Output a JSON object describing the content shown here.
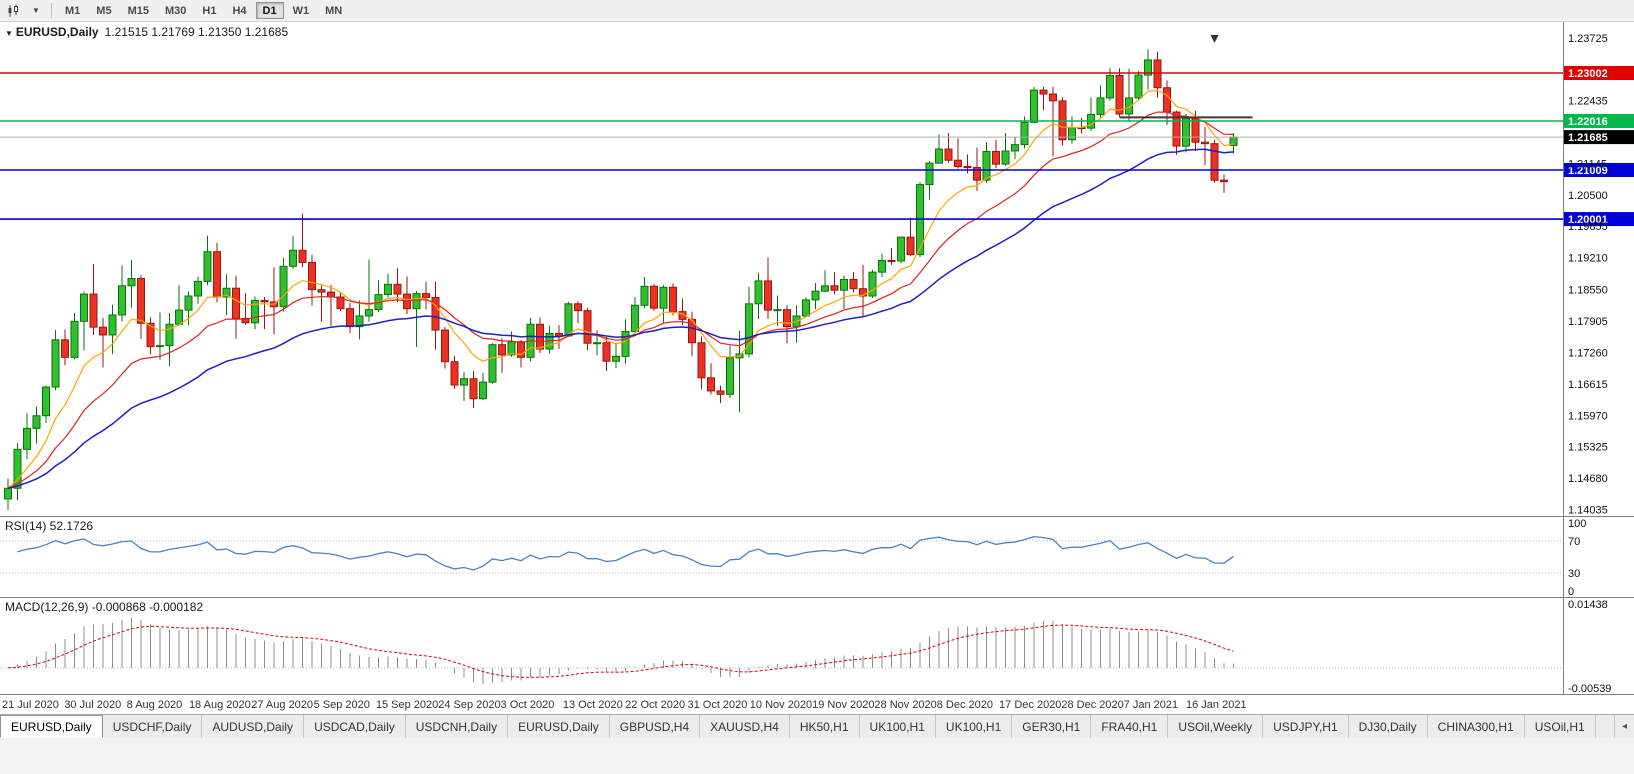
{
  "toolbar": {
    "chart_type_icon": "candlestick-chart-icon",
    "dropdown_icon": "▼",
    "timeframes": [
      "M1",
      "M5",
      "M15",
      "M30",
      "H1",
      "H4",
      "D1",
      "W1",
      "MN"
    ],
    "active_timeframe": "D1"
  },
  "chart": {
    "title_symbol": "EURUSD,Daily",
    "title_ohlc": "1.21515 1.21769 1.21350 1.21685",
    "rsi_label": "RSI(14) 52.1726",
    "macd_label": "MACD(12,26,9) -0.000868 -0.000182"
  },
  "chart_data": {
    "type": "candlestick",
    "symbol": "EURUSD",
    "timeframe": "Daily",
    "background": "#FFFFFF",
    "colors": {
      "up": "#2FBF2F",
      "up_border": "#0B720B",
      "down": "#EA3323",
      "down_border": "#9E1410",
      "axis_text": "#111111",
      "time_text": "#333333",
      "separator": "#808080",
      "current_price_line": "#ADADAD"
    },
    "price_axis": {
      "min": 1.139,
      "max": 1.2405,
      "ticks": [
        "1.23725",
        "1.22435",
        "1.21145",
        "1.20500",
        "1.19855",
        "1.19210",
        "1.18550",
        "1.17905",
        "1.17260",
        "1.16615",
        "1.15970",
        "1.15325",
        "1.14680",
        "1.14035"
      ]
    },
    "time_axis": [
      "21 Jul 2020",
      "30 Jul 2020",
      "8 Aug 2020",
      "18 Aug 2020",
      "27 Aug 2020",
      "5 Sep 2020",
      "15 Sep 2020",
      "24 Sep 2020",
      "3 Oct 2020",
      "13 Oct 2020",
      "22 Oct 2020",
      "31 Oct 2020",
      "10 Nov 2020",
      "19 Nov 2020",
      "28 Nov 2020",
      "8 Dec 2020",
      "17 Dec 2020",
      "28 Dec 2020",
      "7 Jan 2021",
      "16 Jan 2021"
    ],
    "hlines": [
      {
        "price": 1.23002,
        "label": "1.23002",
        "color": "#E00000"
      },
      {
        "price": 1.22016,
        "label": "1.22016",
        "color": "#00B84C"
      },
      {
        "price": 1.21009,
        "label": "1.21009",
        "color": "#0000D8"
      },
      {
        "price": 1.20001,
        "label": "1.20001",
        "color": "#0000D8"
      }
    ],
    "current_price": {
      "value": 1.21685,
      "label": "1.21685",
      "badge_color": "#000000"
    },
    "trend_segment": {
      "price": 1.2209,
      "from_index": 117,
      "to_index": 131,
      "color": "#3A3A3A"
    },
    "arrow_object": {
      "index": 127,
      "price": 1.237,
      "color": "#303030",
      "shape": "arrow-down"
    },
    "candles": [
      [
        1.1425,
        1.1467,
        1.1402,
        1.1447
      ],
      [
        1.1447,
        1.154,
        1.1422,
        1.1527
      ],
      [
        1.1527,
        1.1601,
        1.1507,
        1.157
      ],
      [
        1.157,
        1.1615,
        1.1539,
        1.1596
      ],
      [
        1.1596,
        1.1658,
        1.1581,
        1.1655
      ],
      [
        1.1655,
        1.1772,
        1.1648,
        1.1752
      ],
      [
        1.1752,
        1.1773,
        1.17,
        1.1716
      ],
      [
        1.1716,
        1.1807,
        1.1712,
        1.179
      ],
      [
        1.179,
        1.1851,
        1.173,
        1.1846
      ],
      [
        1.1846,
        1.1908,
        1.1762,
        1.1778
      ],
      [
        1.1778,
        1.1797,
        1.1695,
        1.1762
      ],
      [
        1.1762,
        1.1824,
        1.1723,
        1.1803
      ],
      [
        1.1803,
        1.1905,
        1.179,
        1.1863
      ],
      [
        1.1863,
        1.1916,
        1.1818,
        1.1878
      ],
      [
        1.1878,
        1.1885,
        1.1754,
        1.1786
      ],
      [
        1.1786,
        1.1798,
        1.1722,
        1.1738
      ],
      [
        1.1738,
        1.1808,
        1.1711,
        1.174
      ],
      [
        1.174,
        1.1807,
        1.1698,
        1.1784
      ],
      [
        1.1784,
        1.1864,
        1.1781,
        1.1813
      ],
      [
        1.1813,
        1.1851,
        1.1782,
        1.1842
      ],
      [
        1.1842,
        1.1882,
        1.1826,
        1.1872
      ],
      [
        1.1872,
        1.1966,
        1.1864,
        1.1933
      ],
      [
        1.1933,
        1.1951,
        1.1829,
        1.184
      ],
      [
        1.184,
        1.1887,
        1.1803,
        1.1858
      ],
      [
        1.1858,
        1.1884,
        1.1754,
        1.1796
      ],
      [
        1.1796,
        1.1848,
        1.1783,
        1.1787
      ],
      [
        1.1787,
        1.1841,
        1.1774,
        1.1833
      ],
      [
        1.1833,
        1.184,
        1.1774,
        1.183
      ],
      [
        1.183,
        1.1901,
        1.1763,
        1.182
      ],
      [
        1.182,
        1.192,
        1.181,
        1.1903
      ],
      [
        1.1903,
        1.1965,
        1.1898,
        1.1936
      ],
      [
        1.1936,
        1.2011,
        1.1901,
        1.1911
      ],
      [
        1.1911,
        1.1927,
        1.1822,
        1.1855
      ],
      [
        1.1855,
        1.1864,
        1.1789,
        1.185
      ],
      [
        1.185,
        1.1865,
        1.1781,
        1.184
      ],
      [
        1.184,
        1.1849,
        1.1811,
        1.1816
      ],
      [
        1.1816,
        1.1828,
        1.1766,
        1.1779
      ],
      [
        1.1779,
        1.1833,
        1.1753,
        1.1801
      ],
      [
        1.1801,
        1.1917,
        1.1789,
        1.1814
      ],
      [
        1.1814,
        1.1874,
        1.1809,
        1.1845
      ],
      [
        1.1845,
        1.1888,
        1.1839,
        1.1866
      ],
      [
        1.1866,
        1.1899,
        1.1829,
        1.1846
      ],
      [
        1.1846,
        1.1882,
        1.1805,
        1.1816
      ],
      [
        1.1816,
        1.1852,
        1.1737,
        1.1847
      ],
      [
        1.1847,
        1.1871,
        1.1814,
        1.1839
      ],
      [
        1.1839,
        1.1872,
        1.1732,
        1.1772
      ],
      [
        1.1772,
        1.1778,
        1.1693,
        1.1707
      ],
      [
        1.1707,
        1.1719,
        1.1651,
        1.1659
      ],
      [
        1.1659,
        1.1686,
        1.1626,
        1.1672
      ],
      [
        1.1672,
        1.1688,
        1.1612,
        1.1631
      ],
      [
        1.1631,
        1.1684,
        1.1628,
        1.1665
      ],
      [
        1.1665,
        1.1745,
        1.1662,
        1.1742
      ],
      [
        1.1742,
        1.1755,
        1.1684,
        1.1721
      ],
      [
        1.1721,
        1.1769,
        1.1717,
        1.1748
      ],
      [
        1.1748,
        1.1751,
        1.1695,
        1.1716
      ],
      [
        1.1716,
        1.1797,
        1.1708,
        1.1784
      ],
      [
        1.1784,
        1.1798,
        1.1725,
        1.1733
      ],
      [
        1.1733,
        1.1781,
        1.1724,
        1.1765
      ],
      [
        1.1765,
        1.1782,
        1.1733,
        1.176
      ],
      [
        1.176,
        1.183,
        1.1758,
        1.1826
      ],
      [
        1.1826,
        1.1831,
        1.1786,
        1.1812
      ],
      [
        1.1812,
        1.1818,
        1.1731,
        1.1745
      ],
      [
        1.1745,
        1.1772,
        1.172,
        1.1746
      ],
      [
        1.1746,
        1.1758,
        1.1688,
        1.1708
      ],
      [
        1.1708,
        1.1746,
        1.1694,
        1.1718
      ],
      [
        1.1718,
        1.1794,
        1.1703,
        1.1769
      ],
      [
        1.1769,
        1.184,
        1.1761,
        1.1823
      ],
      [
        1.1823,
        1.1881,
        1.1817,
        1.1862
      ],
      [
        1.1862,
        1.1866,
        1.1811,
        1.1817
      ],
      [
        1.1817,
        1.1864,
        1.1786,
        1.186
      ],
      [
        1.186,
        1.1868,
        1.1802,
        1.181
      ],
      [
        1.181,
        1.1837,
        1.1782,
        1.1794
      ],
      [
        1.1794,
        1.181,
        1.1718,
        1.1746
      ],
      [
        1.1746,
        1.1759,
        1.165,
        1.1674
      ],
      [
        1.1674,
        1.1704,
        1.164,
        1.1647
      ],
      [
        1.1647,
        1.1658,
        1.1622,
        1.164
      ],
      [
        1.164,
        1.174,
        1.1633,
        1.1715
      ],
      [
        1.1715,
        1.177,
        1.1603,
        1.1723
      ],
      [
        1.1723,
        1.1861,
        1.1716,
        1.1826
      ],
      [
        1.1826,
        1.189,
        1.1795,
        1.1873
      ],
      [
        1.1873,
        1.1921,
        1.1795,
        1.1813
      ],
      [
        1.1813,
        1.1843,
        1.1781,
        1.1814
      ],
      [
        1.1814,
        1.1823,
        1.1745,
        1.1779
      ],
      [
        1.1779,
        1.1823,
        1.1746,
        1.1801
      ],
      [
        1.1801,
        1.1839,
        1.1799,
        1.1834
      ],
      [
        1.1834,
        1.1869,
        1.1815,
        1.1852
      ],
      [
        1.1852,
        1.1895,
        1.185,
        1.1863
      ],
      [
        1.1863,
        1.1891,
        1.1846,
        1.1854
      ],
      [
        1.1854,
        1.1884,
        1.1815,
        1.1876
      ],
      [
        1.1876,
        1.1891,
        1.1849,
        1.1857
      ],
      [
        1.1857,
        1.1906,
        1.18,
        1.1842
      ],
      [
        1.1842,
        1.1896,
        1.1838,
        1.1891
      ],
      [
        1.1891,
        1.1929,
        1.1881,
        1.1915
      ],
      [
        1.1915,
        1.1941,
        1.1906,
        1.1914
      ],
      [
        1.1914,
        1.1964,
        1.1909,
        1.1963
      ],
      [
        1.1963,
        1.2003,
        1.1924,
        1.1927
      ],
      [
        1.1927,
        1.2076,
        1.1922,
        1.2071
      ],
      [
        1.2071,
        1.2119,
        1.204,
        1.2115
      ],
      [
        1.2115,
        1.2174,
        1.2114,
        1.2144
      ],
      [
        1.2144,
        1.2177,
        1.2116,
        1.2121
      ],
      [
        1.2121,
        1.2166,
        1.2104,
        1.2108
      ],
      [
        1.2108,
        1.2133,
        1.2094,
        1.2106
      ],
      [
        1.2106,
        1.2147,
        1.2058,
        1.208
      ],
      [
        1.208,
        1.2158,
        1.2075,
        1.2139
      ],
      [
        1.2139,
        1.2163,
        1.2105,
        1.2113
      ],
      [
        1.2113,
        1.2177,
        1.211,
        1.214
      ],
      [
        1.214,
        1.2169,
        1.2123,
        1.2153
      ],
      [
        1.2153,
        1.2211,
        1.2145,
        1.2199
      ],
      [
        1.2199,
        1.2272,
        1.2197,
        1.2265
      ],
      [
        1.2265,
        1.2272,
        1.2224,
        1.2257
      ],
      [
        1.2257,
        1.2272,
        1.2129,
        1.2243
      ],
      [
        1.2243,
        1.225,
        1.2151,
        1.2163
      ],
      [
        1.2163,
        1.2211,
        1.2155,
        1.2188
      ],
      [
        1.2188,
        1.2208,
        1.2176,
        1.2187
      ],
      [
        1.2187,
        1.225,
        1.2181,
        1.2215
      ],
      [
        1.2215,
        1.2275,
        1.2208,
        1.2249
      ],
      [
        1.2249,
        1.2311,
        1.2243,
        1.2295
      ],
      [
        1.2295,
        1.231,
        1.221,
        1.2216
      ],
      [
        1.2216,
        1.2309,
        1.22,
        1.2249
      ],
      [
        1.2249,
        1.2304,
        1.2245,
        1.2296
      ],
      [
        1.2296,
        1.2349,
        1.2266,
        1.2327
      ],
      [
        1.2327,
        1.2344,
        1.225,
        1.227
      ],
      [
        1.227,
        1.2285,
        1.2193,
        1.222
      ],
      [
        1.222,
        1.2223,
        1.2132,
        1.215
      ],
      [
        1.215,
        1.2216,
        1.2137,
        1.2207
      ],
      [
        1.2207,
        1.2223,
        1.214,
        1.2158
      ],
      [
        1.2158,
        1.2189,
        1.2111,
        1.2155
      ],
      [
        1.2155,
        1.2163,
        1.2075,
        1.208
      ],
      [
        1.208,
        1.2092,
        1.2054,
        1.2077
      ],
      [
        1.21515,
        1.21769,
        1.2135,
        1.21685
      ]
    ],
    "indicators": {
      "ma_fast": {
        "type": "EMA",
        "period": 8,
        "color": "#FFA500"
      },
      "ma_mid": {
        "type": "EMA",
        "period": 17,
        "color": "#E02020"
      },
      "ma_slow": {
        "type": "EMA",
        "period": 34,
        "color": "#1F1FBF"
      },
      "rsi": {
        "period": 14,
        "value": "52.1726",
        "color": "#4C82C4",
        "levels": [
          70,
          30
        ],
        "axis_ticks": [
          "100",
          "70",
          "30",
          "0"
        ]
      },
      "macd": {
        "params": "12,26,9",
        "macd_value": "-0.000868",
        "signal_value": "-0.000182",
        "range": [
          -0.00539,
          0.01438
        ],
        "axis_ticks": [
          "0.01438",
          "-0.00539"
        ],
        "histogram_color": "#8C8C8C",
        "signal_color": "#E00000"
      }
    }
  },
  "tabs": {
    "items": [
      "EURUSD,Daily",
      "USDCHF,Daily",
      "AUDUSD,Daily",
      "USDCAD,Daily",
      "USDCNH,Daily",
      "EURUSD,Daily",
      "GBPUSD,H4",
      "XAUUSD,H4",
      "HK50,H1",
      "UK100,H1",
      "UK100,H1",
      "GER30,H1",
      "FRA40,H1",
      "USOil,Weekly",
      "USDJPY,H1",
      "DJ30,Daily",
      "CHINA300,H1",
      "USOil,H1"
    ],
    "active_index": 0,
    "scroll_left_icon": "◂"
  }
}
